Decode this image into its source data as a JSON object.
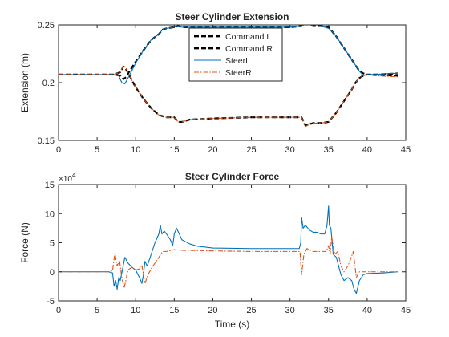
{
  "chart_data": [
    {
      "type": "line",
      "title": "Steer Cylinder Extension",
      "xlabel": "",
      "ylabel": "Extension (m)",
      "xlim": [
        0,
        45
      ],
      "ylim": [
        0.15,
        0.25
      ],
      "xticks": [
        0,
        5,
        10,
        15,
        20,
        25,
        30,
        35,
        40,
        45
      ],
      "yticks": [
        0.15,
        0.2,
        0.25
      ],
      "ytick_labels": [
        "0.15",
        "0.2",
        "0.25"
      ],
      "grid": false,
      "legend_position": "top-center",
      "series": [
        {
          "name": "Command L",
          "style": "dashed",
          "color": "#000000",
          "x": [
            0,
            7.2,
            8.0,
            8.4,
            8.8,
            9.2,
            10.0,
            11.0,
            12.0,
            13.0,
            13.5,
            14.0,
            15.0,
            15.5,
            16.0,
            17.0,
            20.0,
            25.0,
            30.0,
            31.5,
            32.0,
            33.0,
            34.0,
            35.0,
            36.0,
            37.0,
            38.0,
            38.5,
            39.0,
            39.5,
            40.0,
            41.0,
            44.0
          ],
          "y": [
            0.207,
            0.207,
            0.206,
            0.203,
            0.205,
            0.21,
            0.218,
            0.228,
            0.237,
            0.242,
            0.246,
            0.247,
            0.248,
            0.249,
            0.248,
            0.248,
            0.248,
            0.248,
            0.248,
            0.249,
            0.252,
            0.249,
            0.249,
            0.248,
            0.24,
            0.23,
            0.22,
            0.215,
            0.21,
            0.208,
            0.207,
            0.207,
            0.208
          ]
        },
        {
          "name": "Command R",
          "style": "dashed",
          "color": "#000000",
          "x": [
            0,
            7.2,
            8.0,
            8.4,
            8.8,
            9.2,
            10.0,
            11.0,
            12.0,
            13.0,
            14.0,
            15.0,
            15.5,
            16.0,
            17.0,
            20.0,
            25.0,
            30.0,
            31.5,
            32.0,
            33.0,
            34.0,
            35.0,
            36.0,
            37.0,
            38.0,
            38.5,
            39.0,
            39.5,
            40.0,
            41.0,
            44.0
          ],
          "y": [
            0.207,
            0.207,
            0.209,
            0.214,
            0.211,
            0.206,
            0.196,
            0.186,
            0.178,
            0.172,
            0.17,
            0.17,
            0.166,
            0.166,
            0.168,
            0.169,
            0.17,
            0.17,
            0.17,
            0.163,
            0.165,
            0.165,
            0.166,
            0.174,
            0.184,
            0.194,
            0.2,
            0.204,
            0.206,
            0.207,
            0.207,
            0.206
          ]
        },
        {
          "name": "SteerL",
          "style": "solid",
          "color": "#0072BD",
          "x": [
            0,
            7.2,
            7.8,
            8.2,
            8.6,
            9.0,
            9.4,
            10.0,
            11.0,
            12.0,
            13.0,
            13.5,
            14.0,
            15.0,
            15.5,
            16.0,
            17.0,
            20.0,
            25.0,
            30.0,
            31.5,
            32.0,
            32.3,
            33.0,
            34.0,
            35.0,
            35.5,
            36.0,
            37.0,
            38.0,
            38.5,
            39.0,
            39.5,
            40.0,
            41.0,
            43.0,
            44.0
          ],
          "y": [
            0.207,
            0.207,
            0.206,
            0.2,
            0.199,
            0.204,
            0.209,
            0.217,
            0.228,
            0.237,
            0.242,
            0.246,
            0.247,
            0.248,
            0.249,
            0.248,
            0.248,
            0.248,
            0.248,
            0.248,
            0.249,
            0.252,
            0.252,
            0.249,
            0.249,
            0.247,
            0.244,
            0.24,
            0.23,
            0.22,
            0.215,
            0.21,
            0.206,
            0.207,
            0.207,
            0.208,
            0.208
          ]
        },
        {
          "name": "SteerR",
          "style": "dashdot",
          "color": "#D95319",
          "x": [
            0,
            7.2,
            8.0,
            8.4,
            8.8,
            9.2,
            10.0,
            11.0,
            12.0,
            13.0,
            14.0,
            15.0,
            15.5,
            16.0,
            17.0,
            20.0,
            25.0,
            30.0,
            31.5,
            32.0,
            32.3,
            33.0,
            34.0,
            35.0,
            36.0,
            37.0,
            38.0,
            38.5,
            39.0,
            39.5,
            40.0,
            41.0,
            44.0
          ],
          "y": [
            0.207,
            0.207,
            0.209,
            0.215,
            0.212,
            0.206,
            0.196,
            0.186,
            0.178,
            0.172,
            0.17,
            0.17,
            0.166,
            0.166,
            0.168,
            0.169,
            0.17,
            0.17,
            0.17,
            0.162,
            0.163,
            0.165,
            0.165,
            0.166,
            0.174,
            0.184,
            0.194,
            0.2,
            0.204,
            0.206,
            0.207,
            0.206,
            0.205
          ]
        }
      ]
    },
    {
      "type": "line",
      "title": "Steer Cylinder Force",
      "xlabel": "Time (s)",
      "ylabel": "Force (N)",
      "xlim": [
        0,
        45
      ],
      "ylim": [
        -5,
        15
      ],
      "y_scale_exponent": "×10",
      "y_scale_power": "4",
      "xticks": [
        0,
        5,
        10,
        15,
        20,
        25,
        30,
        35,
        40,
        45
      ],
      "yticks": [
        -5,
        0,
        5,
        10,
        15
      ],
      "grid": false,
      "series": [
        {
          "name": "SteerL",
          "style": "solid",
          "color": "#0072BD",
          "x": [
            0,
            6.5,
            7.0,
            7.2,
            7.4,
            7.6,
            7.8,
            8.0,
            8.3,
            8.6,
            9.0,
            9.5,
            10.0,
            10.5,
            10.8,
            11.0,
            11.2,
            11.5,
            12.0,
            12.5,
            13.0,
            13.2,
            13.4,
            13.7,
            14.0,
            14.5,
            14.8,
            15.0,
            15.3,
            16.0,
            17.0,
            18.0,
            20.0,
            25.0,
            30.0,
            31.2,
            31.4,
            31.5,
            31.7,
            32.0,
            32.5,
            33.0,
            33.5,
            34.0,
            34.5,
            34.8,
            35.0,
            35.1,
            35.3,
            35.6,
            36.0,
            36.3,
            36.6,
            37.0,
            37.5,
            38.0,
            38.3,
            38.6,
            39.0,
            39.5,
            40.0,
            42.0,
            44.0
          ],
          "y": [
            0,
            0,
            -0.2,
            -2.5,
            -1.5,
            -3.0,
            -1.0,
            -1.5,
            0.5,
            2.5,
            1.5,
            0.8,
            0.3,
            -1.0,
            -2.0,
            -0.5,
            1.8,
            1.0,
            3.0,
            5.0,
            6.5,
            8.0,
            6.5,
            7.0,
            6.5,
            5.5,
            4.5,
            6.5,
            7.5,
            5.5,
            4.8,
            4.4,
            4.1,
            4.0,
            4.0,
            4.0,
            5.0,
            9.4,
            7.5,
            8.0,
            7.2,
            6.8,
            6.8,
            6.5,
            6.5,
            8.0,
            11.3,
            8.0,
            7.5,
            3.0,
            2.5,
            1.0,
            -0.5,
            -1.5,
            -1.0,
            -1.5,
            -3.0,
            -3.7,
            -1.5,
            -0.5,
            -0.3,
            -0.2,
            0
          ]
        },
        {
          "name": "SteerR",
          "style": "dashdot",
          "color": "#D95319",
          "x": [
            0,
            6.5,
            7.0,
            7.3,
            7.6,
            7.9,
            8.2,
            8.5,
            8.8,
            9.0,
            9.5,
            10.0,
            10.5,
            10.8,
            11.0,
            11.2,
            11.6,
            12.0,
            12.5,
            13.0,
            13.5,
            14.0,
            15.0,
            16.0,
            20.0,
            25.0,
            30.0,
            31.3,
            31.5,
            31.8,
            32.2,
            33.0,
            34.0,
            34.7,
            35.0,
            35.2,
            35.4,
            35.8,
            36.2,
            36.6,
            37.0,
            37.5,
            37.8,
            38.2,
            38.6,
            39.0,
            39.5,
            40.0,
            42.0,
            44.0
          ],
          "y": [
            0,
            0,
            0.2,
            3.2,
            1.0,
            2.0,
            -1.0,
            -2.8,
            -1.0,
            0.3,
            0.8,
            0.3,
            0.5,
            1.2,
            -0.5,
            -2.0,
            -0.5,
            0.5,
            1.5,
            2.5,
            3.5,
            3.5,
            3.8,
            3.7,
            3.6,
            3.5,
            3.5,
            3.5,
            -0.5,
            3.0,
            4.0,
            3.5,
            3.5,
            3.5,
            4.5,
            3.0,
            6.0,
            3.0,
            3.5,
            1.0,
            0.0,
            1.0,
            2.0,
            3.5,
            -1.0,
            0,
            0,
            0,
            0,
            0
          ]
        }
      ]
    }
  ]
}
